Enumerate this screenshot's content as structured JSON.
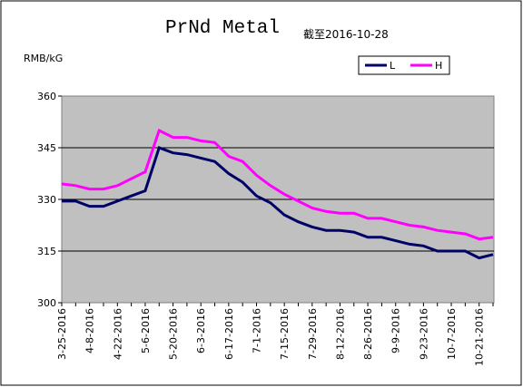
{
  "chart_data": {
    "type": "line",
    "title": "PrNd Metal",
    "subtitle": "截至2016-10-28",
    "y_label": "RMB/kG",
    "categories": [
      "3-25-2016",
      null,
      "4-8-2016",
      null,
      "4-22-2016",
      null,
      "5-6-2016",
      null,
      "5-20-2016",
      null,
      "6-3-2016",
      null,
      "6-17-2016",
      null,
      "7-1-2016",
      null,
      "7-15-2016",
      null,
      "7-29-2016",
      null,
      "8-12-2016",
      null,
      "8-26-2016",
      null,
      "9-9-2016",
      null,
      "9-23-2016",
      null,
      "10-7-2016",
      null,
      "10-21-2016",
      null
    ],
    "series": [
      {
        "name": "L",
        "color": "#000066",
        "values": [
          329.5,
          329.5,
          328,
          328,
          329.5,
          331,
          332.5,
          345,
          343.5,
          343,
          342,
          341,
          337.5,
          335,
          331,
          329,
          325.5,
          323.5,
          322,
          321,
          321,
          320.5,
          319,
          319,
          318,
          317,
          316.5,
          315,
          315,
          315,
          313,
          314
        ]
      },
      {
        "name": "H",
        "color": "#ff00ff",
        "values": [
          334.5,
          334,
          333,
          333,
          334,
          336,
          338,
          350,
          348,
          348,
          347,
          346.5,
          342.5,
          341,
          337,
          334,
          331.5,
          329.5,
          327.5,
          326.5,
          326,
          326,
          324.5,
          324.5,
          323.5,
          322.5,
          322,
          321,
          320.5,
          320,
          318.5,
          319
        ]
      }
    ],
    "ylim": [
      300,
      360
    ],
    "yticks": [
      300,
      315,
      330,
      345,
      360
    ],
    "grid": true,
    "legend": "top-right"
  }
}
